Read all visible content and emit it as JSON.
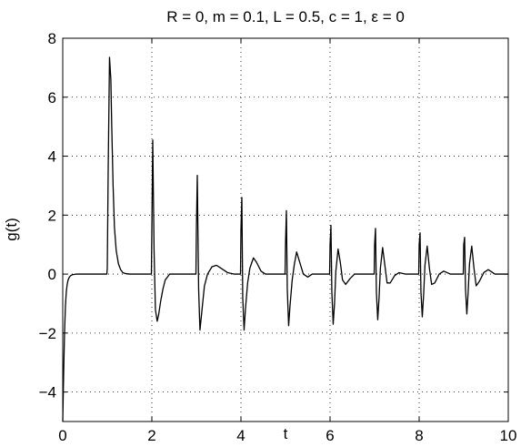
{
  "chart_data": {
    "type": "line",
    "title": "R = 0, m = 0.1, L = 0.5, c = 1, ε = 0",
    "xlabel": "t",
    "ylabel": "g(t)",
    "xlim": [
      0,
      10
    ],
    "ylim": [
      -5,
      8
    ],
    "xticks": [
      0,
      2,
      4,
      6,
      8,
      10
    ],
    "yticks": [
      -4,
      -2,
      0,
      2,
      4,
      6,
      8
    ],
    "grid": true,
    "series": [
      {
        "color": "#000000",
        "x": [
          0.0,
          0.02,
          0.04,
          0.06,
          0.08,
          0.1,
          0.12,
          0.15,
          0.18,
          0.22,
          0.26,
          0.3,
          0.35,
          0.4,
          0.5,
          0.7,
          0.9,
          0.99,
          1.0,
          1.02,
          1.05,
          1.08,
          1.1,
          1.13,
          1.16,
          1.2,
          1.25,
          1.3,
          1.35,
          1.4,
          1.5,
          1.6,
          1.8,
          1.99,
          2.0,
          2.02,
          2.05,
          2.08,
          2.12,
          2.15,
          2.2,
          2.25,
          2.3,
          2.4,
          2.5,
          2.6,
          2.8,
          2.99,
          3.0,
          3.02,
          3.05,
          3.08,
          3.12,
          3.18,
          3.25,
          3.35,
          3.45,
          3.55,
          3.7,
          3.85,
          3.99,
          4.0,
          4.02,
          4.04,
          4.07,
          4.1,
          4.15,
          4.2,
          4.28,
          4.35,
          4.45,
          4.55,
          4.7,
          4.85,
          4.99,
          5.0,
          5.02,
          5.04,
          5.07,
          5.1,
          5.15,
          5.2,
          5.25,
          5.3,
          5.4,
          5.5,
          5.6,
          5.8,
          5.99,
          6.0,
          6.02,
          6.04,
          6.07,
          6.1,
          6.13,
          6.18,
          6.23,
          6.28,
          6.35,
          6.45,
          6.55,
          6.7,
          6.85,
          6.99,
          7.0,
          7.02,
          7.04,
          7.07,
          7.1,
          7.13,
          7.18,
          7.23,
          7.28,
          7.35,
          7.45,
          7.55,
          7.7,
          7.85,
          7.99,
          8.0,
          8.02,
          8.04,
          8.07,
          8.1,
          8.13,
          8.18,
          8.23,
          8.28,
          8.35,
          8.45,
          8.55,
          8.7,
          8.85,
          8.99,
          9.0,
          9.02,
          9.04,
          9.07,
          9.1,
          9.13,
          9.18,
          9.23,
          9.28,
          9.35,
          9.45,
          9.55,
          9.7,
          9.85,
          10.0
        ],
        "y": [
          -5.0,
          -3.4,
          -2.0,
          -1.1,
          -0.6,
          -0.35,
          -0.2,
          -0.1,
          -0.05,
          -0.02,
          -0.01,
          0.0,
          0.0,
          0.0,
          0.0,
          0.0,
          0.0,
          0.0,
          0.2,
          3.5,
          7.35,
          6.6,
          5.0,
          3.0,
          1.6,
          0.8,
          0.35,
          0.15,
          0.05,
          0.02,
          0.0,
          0.0,
          0.0,
          0.0,
          1.5,
          4.55,
          0.8,
          -1.2,
          -1.6,
          -1.4,
          -0.9,
          -0.5,
          -0.2,
          0.0,
          0.0,
          0.0,
          0.0,
          0.0,
          1.5,
          3.35,
          -0.5,
          -1.9,
          -1.3,
          -0.4,
          0.0,
          0.25,
          0.3,
          0.2,
          0.05,
          0.0,
          0.0,
          1.5,
          2.6,
          -0.8,
          -1.9,
          -1.2,
          -0.3,
          0.2,
          0.55,
          0.4,
          0.1,
          0.0,
          0.0,
          0.0,
          0.0,
          1.0,
          2.15,
          -0.5,
          -1.75,
          -1.1,
          -0.2,
          0.35,
          0.75,
          0.5,
          0.0,
          -0.1,
          0.0,
          0.0,
          0.0,
          1.0,
          1.65,
          -0.6,
          -1.7,
          -1.0,
          0.1,
          0.85,
          0.4,
          -0.2,
          -0.35,
          -0.15,
          0.0,
          0.0,
          0.0,
          0.0,
          1.0,
          1.55,
          -0.6,
          -1.55,
          -0.8,
          0.2,
          0.9,
          0.3,
          -0.3,
          -0.3,
          -0.05,
          0.05,
          0.0,
          0.0,
          0.0,
          1.0,
          1.4,
          -0.6,
          -1.45,
          -0.7,
          0.3,
          0.95,
          0.2,
          -0.35,
          -0.3,
          0.0,
          0.1,
          0.0,
          0.0,
          0.0,
          1.0,
          1.25,
          -0.5,
          -1.35,
          -0.6,
          0.35,
          0.95,
          0.2,
          -0.4,
          -0.25,
          0.05,
          0.15,
          0.0,
          0.0,
          0.0
        ]
      }
    ]
  }
}
